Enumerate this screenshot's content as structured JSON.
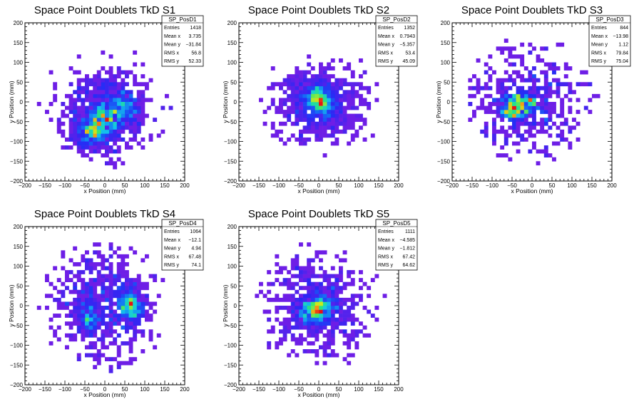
{
  "chart_data": [
    {
      "type": "heatmap",
      "title": "Space Point Doublets TkD S1",
      "xlabel": "x Position (mm)",
      "ylabel": "y Position (mm)",
      "xlim": [
        -200,
        200
      ],
      "ylim": [
        -200,
        200
      ],
      "xticks": [
        "−200",
        "−150",
        "−100",
        "−50",
        "0",
        "50",
        "100",
        "150",
        "200"
      ],
      "yticks": [
        "−200",
        "−150",
        "−100",
        "−50",
        "0",
        "50",
        "100",
        "150",
        "200"
      ],
      "stats": {
        "name": "SP_PosD1",
        "rows": [
          {
            "label": "Entries",
            "value": "1418"
          },
          {
            "label": "Mean x",
            "value": "3.735"
          },
          {
            "label": "Mean y",
            "value": "−31.84"
          },
          {
            "label": "RMS x",
            "value": "56.8"
          },
          {
            "label": "RMS y",
            "value": "52.33"
          }
        ]
      },
      "entries": 1418,
      "mean_x": 3.735,
      "mean_y": -31.84,
      "rms_x": 56.8,
      "rms_y": 52.33,
      "hot_spots": [
        [
          -20,
          -60
        ],
        [
          10,
          -40
        ],
        [
          50,
          -10
        ],
        [
          -40,
          -80
        ]
      ]
    },
    {
      "type": "heatmap",
      "title": "Space Point Doublets TkD S2",
      "xlabel": "x Position (mm)",
      "ylabel": "y Position (mm)",
      "xlim": [
        -200,
        200
      ],
      "ylim": [
        -200,
        200
      ],
      "xticks": [
        "−200",
        "−150",
        "−100",
        "−50",
        "0",
        "50",
        "100",
        "150",
        "200"
      ],
      "yticks": [
        "−200",
        "−150",
        "−100",
        "−50",
        "0",
        "50",
        "100",
        "150",
        "200"
      ],
      "stats": {
        "name": "SP_PosD2",
        "rows": [
          {
            "label": "Entries",
            "value": "1352"
          },
          {
            "label": "Mean x",
            "value": "0.7943"
          },
          {
            "label": "Mean y",
            "value": "−5.357"
          },
          {
            "label": "RMS x",
            "value": "53.4"
          },
          {
            "label": "RMS y",
            "value": "45.09"
          }
        ]
      },
      "entries": 1352,
      "mean_x": 0.7943,
      "mean_y": -5.357,
      "rms_x": 53.4,
      "rms_y": 45.09,
      "hot_spots": [
        [
          0,
          5
        ],
        [
          -10,
          15
        ],
        [
          10,
          -5
        ]
      ]
    },
    {
      "type": "heatmap",
      "title": "Space Point Doublets TkD S3",
      "xlabel": "x Position (mm)",
      "ylabel": "y Position (mm)",
      "xlim": [
        -200,
        200
      ],
      "ylim": [
        -200,
        200
      ],
      "xticks": [
        "−200",
        "−150",
        "−100",
        "−50",
        "0",
        "50",
        "100",
        "150",
        "200"
      ],
      "yticks": [
        "−200",
        "−150",
        "−100",
        "−50",
        "0",
        "50",
        "100",
        "150",
        "200"
      ],
      "stats": {
        "name": "SP_PosD3",
        "rows": [
          {
            "label": "Entries",
            "value": "844"
          },
          {
            "label": "Mean x",
            "value": "−13.98"
          },
          {
            "label": "Mean y",
            "value": "1.12"
          },
          {
            "label": "RMS x",
            "value": "79.84"
          },
          {
            "label": "RMS y",
            "value": "75.04"
          }
        ]
      },
      "entries": 844,
      "mean_x": -13.98,
      "mean_y": 1.12,
      "rms_x": 79.84,
      "rms_y": 75.04,
      "hot_spots": [
        [
          -50,
          -10
        ],
        [
          -20,
          0
        ],
        [
          -40,
          -20
        ]
      ]
    },
    {
      "type": "heatmap",
      "title": "Space Point Doublets TkD S4",
      "xlabel": "x Position (mm)",
      "ylabel": "y Position (mm)",
      "xlim": [
        -200,
        200
      ],
      "ylim": [
        -200,
        200
      ],
      "xticks": [
        "−200",
        "−150",
        "−100",
        "−50",
        "0",
        "50",
        "100",
        "150",
        "200"
      ],
      "yticks": [
        "−200",
        "−150",
        "−100",
        "−50",
        "0",
        "50",
        "100",
        "150",
        "200"
      ],
      "stats": {
        "name": "SP_PosD4",
        "rows": [
          {
            "label": "Entries",
            "value": "1064"
          },
          {
            "label": "Mean x",
            "value": "−12.1"
          },
          {
            "label": "Mean y",
            "value": "4.94"
          },
          {
            "label": "RMS x",
            "value": "67.48"
          },
          {
            "label": "RMS y",
            "value": "74.1"
          }
        ]
      },
      "entries": 1064,
      "mean_x": -12.1,
      "mean_y": 4.94,
      "rms_x": 67.48,
      "rms_y": 74.1,
      "hot_spots": [
        [
          60,
          10
        ],
        [
          -40,
          -30
        ],
        [
          70,
          -10
        ]
      ]
    },
    {
      "type": "heatmap",
      "title": "Space Point Doublets TkD S5",
      "xlabel": "x Position (mm)",
      "ylabel": "y Position (mm)",
      "xlim": [
        -200,
        200
      ],
      "ylim": [
        -200,
        200
      ],
      "xticks": [
        "−200",
        "−150",
        "−100",
        "−50",
        "0",
        "50",
        "100",
        "150",
        "200"
      ],
      "yticks": [
        "−200",
        "−150",
        "−100",
        "−50",
        "0",
        "50",
        "100",
        "150",
        "200"
      ],
      "stats": {
        "name": "SP_PosD5",
        "rows": [
          {
            "label": "Entries",
            "value": "1111"
          },
          {
            "label": "Mean x",
            "value": "−4.585"
          },
          {
            "label": "Mean y",
            "value": "−1.812"
          },
          {
            "label": "RMS x",
            "value": "67.42"
          },
          {
            "label": "RMS y",
            "value": "64.62"
          }
        ]
      },
      "entries": 1111,
      "mean_x": -4.585,
      "mean_y": -1.812,
      "rms_x": 67.42,
      "rms_y": 64.62,
      "hot_spots": [
        [
          -10,
          -10
        ],
        [
          10,
          0
        ],
        [
          -20,
          -20
        ]
      ]
    }
  ]
}
